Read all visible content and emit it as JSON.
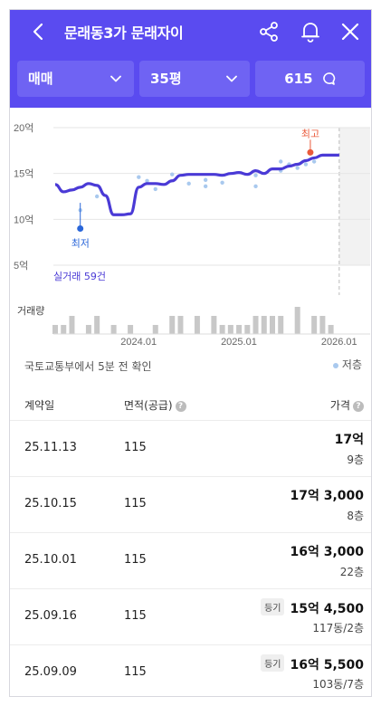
{
  "header": {
    "title": "문래동3가 문래자이",
    "filters": {
      "deal_type": "매매",
      "size": "35평",
      "count": "615"
    }
  },
  "chart_data": {
    "type": "line",
    "xlabel": "",
    "ylabel": "",
    "y_ticks": [
      "20억",
      "15억",
      "10억",
      "5억"
    ],
    "ylim": [
      5,
      20
    ],
    "x_ticks": [
      "2024.01",
      "2025.01",
      "2026.01"
    ],
    "series": [
      {
        "x": [
          "2023.03",
          "2023.04",
          "2023.05",
          "2023.06",
          "2023.07",
          "2023.08",
          "2023.09",
          "2023.10",
          "2023.11",
          "2023.12",
          "2024.01",
          "2024.02",
          "2024.03",
          "2024.04",
          "2024.05",
          "2024.06",
          "2024.07",
          "2024.08",
          "2024.09",
          "2024.10",
          "2024.11",
          "2024.12",
          "2025.01",
          "2025.02",
          "2025.03",
          "2025.04",
          "2025.05",
          "2025.06",
          "2025.07",
          "2025.08",
          "2025.09",
          "2025.10",
          "2025.11",
          "2025.12",
          "2026.01"
        ],
        "values": [
          13.8,
          13.0,
          13.2,
          13.5,
          13.9,
          13.7,
          12.6,
          10.5,
          10.5,
          10.6,
          13.5,
          13.9,
          13.9,
          13.8,
          14.2,
          14.8,
          14.9,
          14.9,
          14.9,
          14.9,
          14.8,
          15.0,
          15.1,
          14.9,
          15.3,
          15.0,
          15.5,
          15.5,
          15.8,
          16.0,
          16.4,
          16.7,
          17.0,
          17.0,
          17.0
        ]
      }
    ],
    "scatter": [
      {
        "x": "2023.06",
        "y": 11.0
      },
      {
        "x": "2023.08",
        "y": 12.5
      },
      {
        "x": "2024.01",
        "y": 14.6
      },
      {
        "x": "2024.02",
        "y": 14.2
      },
      {
        "x": "2024.03",
        "y": 13.3
      },
      {
        "x": "2024.05",
        "y": 14.9
      },
      {
        "x": "2024.07",
        "y": 13.9
      },
      {
        "x": "2024.09",
        "y": 14.3
      },
      {
        "x": "2024.09",
        "y": 13.6
      },
      {
        "x": "2024.11",
        "y": 14.0
      },
      {
        "x": "2025.03",
        "y": 14.8
      },
      {
        "x": "2025.03",
        "y": 13.6
      },
      {
        "x": "2025.06",
        "y": 15.3
      },
      {
        "x": "2025.06",
        "y": 16.3
      },
      {
        "x": "2025.07",
        "y": 16.0
      },
      {
        "x": "2025.08",
        "y": 15.6
      },
      {
        "x": "2025.09",
        "y": 16.0
      },
      {
        "x": "2025.10",
        "y": 16.3
      }
    ],
    "low_marker": {
      "label": "최저",
      "x": "2023.06",
      "y": 9.0
    },
    "high_marker": {
      "label": "최고",
      "x": "2025.09",
      "y": 17.3
    },
    "annotation": "실거래 59건",
    "volume_label": "거래량",
    "volume": [
      1,
      1,
      2,
      0,
      1,
      2,
      0,
      1,
      0,
      1,
      0,
      0,
      1,
      0,
      2,
      2,
      0,
      2,
      0,
      2,
      1,
      1,
      1,
      1,
      2,
      2,
      2,
      2,
      0,
      3,
      0,
      2,
      2,
      1,
      0
    ],
    "forecast_start": "2026.01"
  },
  "status": {
    "text": "국토교통부에서 5분 전 확인",
    "legend": "저층"
  },
  "table": {
    "headers": {
      "date": "계약일",
      "area": "면적(공급)",
      "price": "가격"
    },
    "rows": [
      {
        "date": "25.11.13",
        "area": "115",
        "badge": "",
        "price": "17억",
        "floor": "9층"
      },
      {
        "date": "25.10.15",
        "area": "115",
        "badge": "",
        "price": "17억 3,000",
        "floor": "8층"
      },
      {
        "date": "25.10.01",
        "area": "115",
        "badge": "",
        "price": "16억 3,000",
        "floor": "22층"
      },
      {
        "date": "25.09.16",
        "area": "115",
        "badge": "등기",
        "price": "15억 4,500",
        "floor": "117동/2층"
      },
      {
        "date": "25.09.09",
        "area": "115",
        "badge": "등기",
        "price": "16억 5,500",
        "floor": "103동/7층"
      }
    ]
  },
  "colors": {
    "brand": "#5a4bf0",
    "brand_light": "#6f63f3",
    "line": "#4a3ad6",
    "scatter": "#a9c9ee",
    "low": "#2a66d9",
    "high": "#ea5a3a",
    "volume": "#c8c8c8"
  },
  "icons": [
    "back-arrow-icon",
    "share-icon",
    "bell-icon",
    "close-icon",
    "chevron-down-icon",
    "chat-bubble-icon",
    "question-icon"
  ]
}
